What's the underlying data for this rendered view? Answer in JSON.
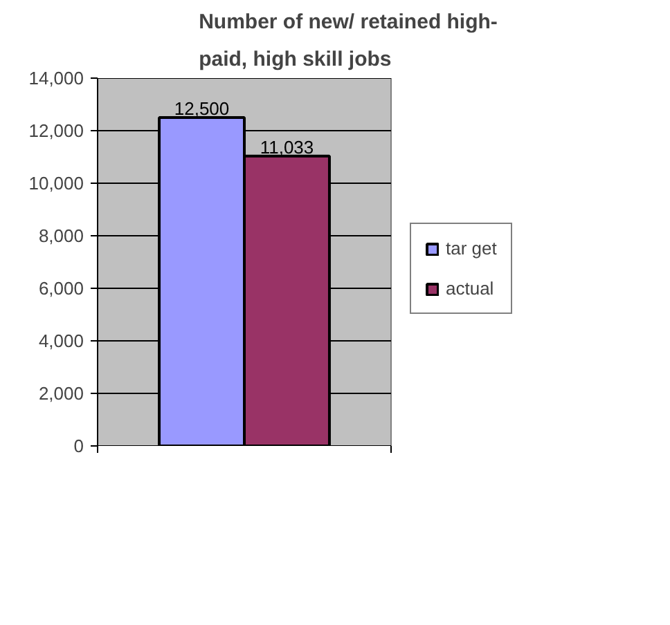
{
  "chart_data": {
    "type": "bar",
    "title": "Number of new/ retained high-paid, high skill jobs",
    "categories": [
      null
    ],
    "series": [
      {
        "name": "tar get",
        "color": "#9999ff",
        "values": [
          12500
        ]
      },
      {
        "name": "actual",
        "color": "#993366",
        "values": [
          11033
        ]
      }
    ],
    "ylim": [
      0,
      14000
    ],
    "yticks": [
      {
        "value": 0,
        "label": "0"
      },
      {
        "value": 2000,
        "label": "2,000"
      },
      {
        "value": 4000,
        "label": "4,000"
      },
      {
        "value": 6000,
        "label": "6,000"
      },
      {
        "value": 8000,
        "label": "8,000"
      },
      {
        "value": 10000,
        "label": "10,000"
      },
      {
        "value": 12000,
        "label": "12,000"
      },
      {
        "value": 14000,
        "label": "14,000"
      }
    ],
    "value_labels": [
      "12,500",
      "11,033"
    ],
    "grid": "y",
    "legend": "right"
  }
}
